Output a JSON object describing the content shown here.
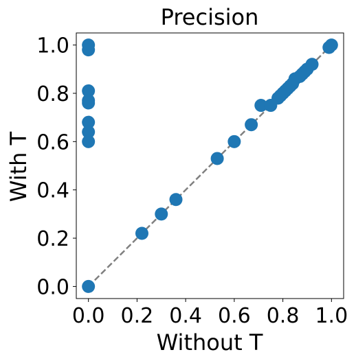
{
  "chart_data": {
    "type": "scatter",
    "title": "Precision",
    "xlabel": "Without T",
    "ylabel": "With T",
    "xlim": [
      -0.05,
      1.05
    ],
    "ylim": [
      -0.05,
      1.05
    ],
    "xticks": [
      "0.0",
      "0.2",
      "0.4",
      "0.6",
      "0.8",
      "1.0"
    ],
    "yticks": [
      "0.0",
      "0.2",
      "0.4",
      "0.6",
      "0.8",
      "1.0"
    ],
    "grid": false,
    "legend": "none",
    "reference_line": {
      "x": [
        0,
        1
      ],
      "y": [
        0,
        1
      ],
      "style": "dashed",
      "color": "#808080"
    },
    "marker_color": "#1f77b4",
    "points": [
      {
        "x": 0.0,
        "y": 1.0
      },
      {
        "x": 0.0,
        "y": 0.98
      },
      {
        "x": 0.0,
        "y": 0.81
      },
      {
        "x": 0.0,
        "y": 0.77
      },
      {
        "x": 0.0,
        "y": 0.76
      },
      {
        "x": 0.0,
        "y": 0.68
      },
      {
        "x": 0.0,
        "y": 0.64
      },
      {
        "x": 0.0,
        "y": 0.6
      },
      {
        "x": 0.0,
        "y": 0.0
      },
      {
        "x": 0.22,
        "y": 0.22
      },
      {
        "x": 0.3,
        "y": 0.3
      },
      {
        "x": 0.36,
        "y": 0.36
      },
      {
        "x": 0.53,
        "y": 0.53
      },
      {
        "x": 0.6,
        "y": 0.6
      },
      {
        "x": 0.67,
        "y": 0.67
      },
      {
        "x": 0.71,
        "y": 0.75
      },
      {
        "x": 0.75,
        "y": 0.75
      },
      {
        "x": 0.78,
        "y": 0.78
      },
      {
        "x": 0.79,
        "y": 0.79
      },
      {
        "x": 0.8,
        "y": 0.8
      },
      {
        "x": 0.81,
        "y": 0.81
      },
      {
        "x": 0.82,
        "y": 0.82
      },
      {
        "x": 0.83,
        "y": 0.83
      },
      {
        "x": 0.84,
        "y": 0.84
      },
      {
        "x": 0.85,
        "y": 0.86
      },
      {
        "x": 0.87,
        "y": 0.87
      },
      {
        "x": 0.88,
        "y": 0.88
      },
      {
        "x": 0.89,
        "y": 0.89
      },
      {
        "x": 0.9,
        "y": 0.9
      },
      {
        "x": 0.92,
        "y": 0.92
      },
      {
        "x": 0.99,
        "y": 0.99
      },
      {
        "x": 1.0,
        "y": 1.0
      }
    ]
  }
}
